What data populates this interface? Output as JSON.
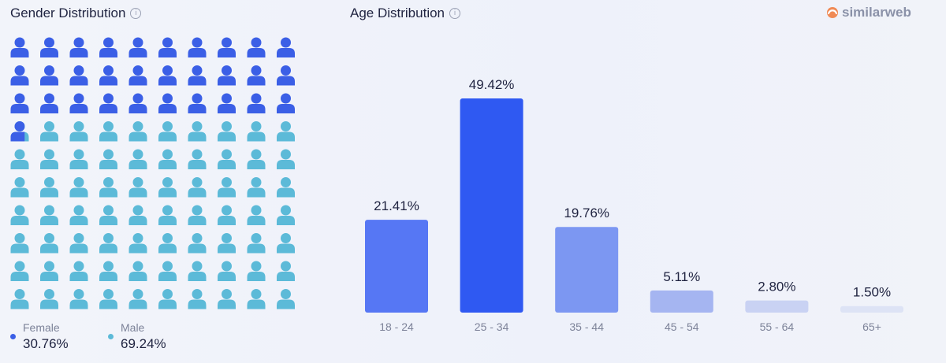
{
  "gender": {
    "title": "Gender Distribution",
    "info_icon": "i",
    "chart_data": {
      "type": "pictogram",
      "categories": [
        "Female",
        "Male"
      ],
      "values": [
        30.76,
        69.24
      ],
      "value_labels": [
        "30.76%",
        "69.24%"
      ],
      "colors": [
        "#3b5fe6",
        "#5cbad8"
      ],
      "icon": "person-icon",
      "grid": [
        10,
        10
      ]
    },
    "legend": [
      {
        "label": "Female",
        "value": "30.76%",
        "color": "#3b5fe6"
      },
      {
        "label": "Male",
        "value": "69.24%",
        "color": "#5cbad8"
      }
    ]
  },
  "age": {
    "title": "Age Distribution",
    "info_icon": "i",
    "chart_data": {
      "type": "bar",
      "categories": [
        "18 - 24",
        "25 - 34",
        "35 - 44",
        "45 - 54",
        "55 - 64",
        "65+"
      ],
      "values": [
        21.41,
        49.42,
        19.76,
        5.11,
        2.8,
        1.5
      ],
      "value_labels": [
        "21.41%",
        "49.42%",
        "19.76%",
        "5.11%",
        "2.80%",
        "1.50%"
      ],
      "colors": [
        "#5677f4",
        "#2f59f2",
        "#7c97f2",
        "#a5b5f1",
        "#c9d2f3",
        "#dde3f5"
      ],
      "ylim": [
        0,
        49.42
      ],
      "grid": false
    }
  },
  "brand": {
    "name": "similarweb",
    "icon": "similarweb-logo-icon"
  }
}
